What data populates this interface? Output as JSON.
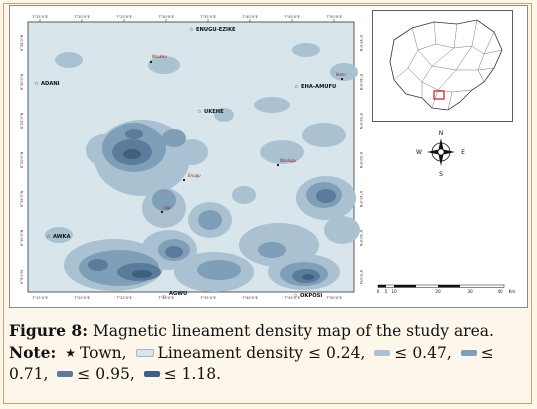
{
  "map": {
    "lon_ticks": [
      "7°15'0\"E",
      "7°20'0\"E",
      "7°25'0\"E",
      "7°30'0\"E",
      "7°35'0\"E",
      "7°40'0\"E",
      "7°45'0\"E",
      "7°50'0\"E"
    ],
    "lat_ticks": [
      "6°35'0\"N",
      "6°30'0\"N",
      "6°25'0\"N",
      "6°20'0\"N",
      "6°15'0\"N",
      "6°10'0\"N",
      "6°5'0\"N"
    ],
    "towns": [
      {
        "name": "ENUGU-EZIKE",
        "kind": "town"
      },
      {
        "name": "ADANI",
        "kind": "town"
      },
      {
        "name": "EHA-AMUFU",
        "kind": "town"
      },
      {
        "name": "UKEHE",
        "kind": "town"
      },
      {
        "name": "AWKA",
        "kind": "town"
      },
      {
        "name": "AGWU",
        "kind": "town"
      },
      {
        "name": "OKPOSI",
        "kind": "town"
      }
    ],
    "localities": [
      "Nsukka",
      "Ikem",
      "Nkalagu",
      "Enugu",
      "Ugi"
    ],
    "colors": {
      "class1": "#d8e6ec",
      "class2": "#a9c1d1",
      "class3": "#7f9fb8",
      "class4": "#5a7c9a",
      "class5": "#3d5f80",
      "town_label": "#111111",
      "locality_label": "#8b1a1a"
    }
  },
  "inset": {
    "highlight_color": "#d8262e",
    "north_letters": [
      "N",
      "E",
      "S",
      "W"
    ]
  },
  "scale": {
    "ticks": [
      "0",
      "5",
      "10",
      "20",
      "30",
      "40"
    ],
    "unit": "Km"
  },
  "caption": {
    "figure_label": "Figure 8:",
    "figure_text": "Magnetic lineament density map of the study area.",
    "note_label": "Note:",
    "town_label": "Town,",
    "legend": [
      {
        "label": "Lineament density ≤ 0.24,",
        "color": "#d8e6ec"
      },
      {
        "label": "≤ 0.47,",
        "color": "#a9c1d1"
      },
      {
        "label": "≤ 0.71,",
        "color": "#7f9fb8"
      },
      {
        "label": "≤ 0.95,",
        "color": "#5a7c9a"
      },
      {
        "label": "≤ 1.18.",
        "color": "#3d5f80"
      }
    ]
  }
}
